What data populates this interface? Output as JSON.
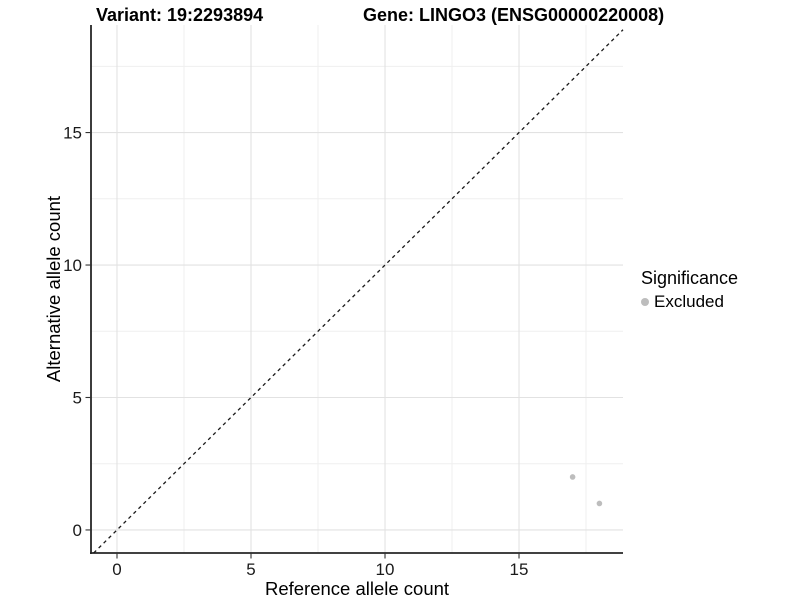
{
  "chart_data": {
    "type": "scatter",
    "titles": {
      "left": "Variant: 19:2293894",
      "right": "Gene: LINGO3 (ENSG00000220008)"
    },
    "xlabel": "Reference allele count",
    "ylabel": "Alternative allele count",
    "xlim": [
      -0.97,
      18.88
    ],
    "ylim": [
      -0.87,
      19.06
    ],
    "xticks": [
      0,
      5,
      10,
      15
    ],
    "yticks": [
      0,
      5,
      10,
      15
    ],
    "minor_xticks": [
      2.5,
      7.5,
      12.5,
      17.5
    ],
    "minor_yticks": [
      2.5,
      7.5,
      12.5,
      17.5
    ],
    "grid": "major+minor",
    "series": [
      {
        "name": "Excluded",
        "marker": "circle",
        "color": "#bdbdbd",
        "points": [
          {
            "x": 17,
            "y": 2
          },
          {
            "x": 18,
            "y": 1
          }
        ]
      }
    ],
    "reference_line": {
      "type": "identity",
      "equation": "y = x",
      "style": "dashed",
      "color": "#1a1a1a"
    },
    "legend": {
      "title": "Significance",
      "position": "right",
      "entries": [
        {
          "label": "Excluded",
          "color": "#bdbdbd"
        }
      ]
    },
    "style_colors": {
      "background": "#ffffff",
      "grid_major": "#e2e2e2",
      "grid_minor": "#efefef",
      "axis_line": "#262626",
      "tick_mark": "#333333",
      "tick_label": "#1a1a1a"
    }
  }
}
